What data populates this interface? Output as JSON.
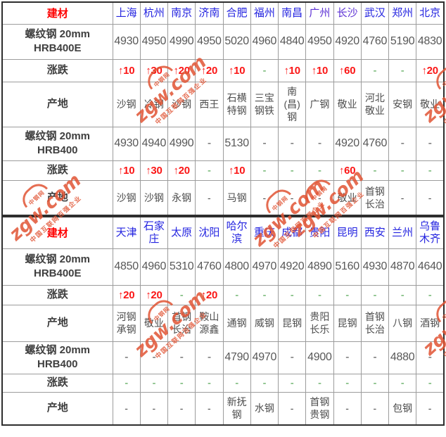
{
  "watermark": {
    "logo_text": "中钢网",
    "main_text": "zgw.com",
    "sub_text": "中国互联网百强企业",
    "color": "#e15434"
  },
  "colors": {
    "header_label": "#fe0000",
    "city_link": "#2424e0",
    "city_visited": "#5b2fd4",
    "price_text": "#585858",
    "change_up": "#fb1616",
    "change_flat": "#4aa04a"
  },
  "table1": {
    "corner_label": "建材",
    "cities": [
      {
        "name": "上海",
        "visited": false
      },
      {
        "name": "杭州",
        "visited": false
      },
      {
        "name": "南京",
        "visited": false
      },
      {
        "name": "济南",
        "visited": false
      },
      {
        "name": "合肥",
        "visited": false
      },
      {
        "name": "福州",
        "visited": false
      },
      {
        "name": "南昌",
        "visited": false
      },
      {
        "name": "广州",
        "visited": true
      },
      {
        "name": "长沙",
        "visited": true
      },
      {
        "name": "武汉",
        "visited": false
      },
      {
        "name": "郑州",
        "visited": false
      },
      {
        "name": "北京",
        "visited": false
      }
    ],
    "rows": [
      {
        "label_lines": [
          "螺纹钢 20mm",
          "HRB400E"
        ],
        "type": "price",
        "values": [
          "4930",
          "4950",
          "4990",
          "4950",
          "5020",
          "4960",
          "4840",
          "4950",
          "4920",
          "4760",
          "5190",
          "4830"
        ]
      },
      {
        "label_lines": [
          "涨跌"
        ],
        "type": "change",
        "values": [
          "↑10",
          "↑30",
          "↑20",
          "↑20",
          "↑10",
          "-",
          "↑10",
          "↑10",
          "↑60",
          "-",
          "-",
          "↑20"
        ]
      },
      {
        "label_lines": [
          "产地"
        ],
        "type": "producer",
        "values": [
          "沙钢",
          "冷钢",
          "沙钢",
          "西王",
          "石横特钢",
          "三宝钢铁",
          "南(昌)钢",
          "广钢",
          "敬业",
          "河北敬业",
          "安钢",
          "敬业"
        ]
      },
      {
        "label_lines": [
          "螺纹钢 20mm",
          "HRB400"
        ],
        "type": "price",
        "values": [
          "4930",
          "4940",
          "4990",
          "-",
          "5130",
          "-",
          "-",
          "-",
          "4920",
          "4760",
          "-",
          "-"
        ]
      },
      {
        "label_lines": [
          "涨跌"
        ],
        "type": "change",
        "values": [
          "↑10",
          "↑30",
          "↑20",
          "-",
          "↑10",
          "-",
          "-",
          "-",
          "↑60",
          "-",
          "-",
          "-"
        ]
      },
      {
        "label_lines": [
          "产地"
        ],
        "type": "producer",
        "values": [
          "沙钢",
          "沙钢",
          "永钢",
          "-",
          "马钢",
          "-",
          "-",
          "-",
          "敬业",
          "首钢长治",
          "-",
          "-"
        ]
      }
    ]
  },
  "table2": {
    "corner_label": "建材",
    "cities": [
      {
        "name": "天津",
        "visited": false
      },
      {
        "name": "石家庄",
        "visited": false
      },
      {
        "name": "太原",
        "visited": false
      },
      {
        "name": "沈阳",
        "visited": false
      },
      {
        "name": "哈尔滨",
        "visited": false
      },
      {
        "name": "重庆",
        "visited": false
      },
      {
        "name": "成都",
        "visited": false
      },
      {
        "name": "贵阳",
        "visited": false
      },
      {
        "name": "昆明",
        "visited": false
      },
      {
        "name": "西安",
        "visited": false
      },
      {
        "name": "兰州",
        "visited": false
      },
      {
        "name": "乌鲁木齐",
        "visited": false
      }
    ],
    "rows": [
      {
        "label_lines": [
          "螺纹钢 20mm",
          "HRB400E"
        ],
        "type": "price",
        "values": [
          "4850",
          "4960",
          "5310",
          "4760",
          "4800",
          "4970",
          "4920",
          "4890",
          "5160",
          "4930",
          "4870",
          "4640"
        ]
      },
      {
        "label_lines": [
          "涨跌"
        ],
        "type": "change",
        "values": [
          "↑20",
          "↑20",
          "-",
          "↑20",
          "-",
          "-",
          "-",
          "-",
          "-",
          "-",
          "-",
          "-"
        ]
      },
      {
        "label_lines": [
          "产地"
        ],
        "type": "producer",
        "values": [
          "河钢承钢",
          "敬业",
          "首钢长治",
          "鞍山源鑫",
          "通钢",
          "威钢",
          "昆钢",
          "贵阳长乐",
          "昆钢",
          "首钢长治",
          "八钢",
          "酒钢"
        ]
      },
      {
        "label_lines": [
          "螺纹钢 20mm",
          "HRB400"
        ],
        "type": "price",
        "values": [
          "-",
          "-",
          "-",
          "-",
          "4790",
          "4970",
          "-",
          "4900",
          "-",
          "-",
          "4880",
          "-"
        ]
      },
      {
        "label_lines": [
          "涨跌"
        ],
        "type": "change",
        "values": [
          "-",
          "-",
          "-",
          "-",
          "-",
          "-",
          "-",
          "-",
          "-",
          "-",
          "-",
          "-"
        ]
      },
      {
        "label_lines": [
          "产地"
        ],
        "type": "producer",
        "values": [
          "-",
          "-",
          "-",
          "-",
          "新抚钢",
          "水钢",
          "-",
          "首钢贵钢",
          "-",
          "-",
          "包钢",
          "-"
        ]
      }
    ]
  }
}
